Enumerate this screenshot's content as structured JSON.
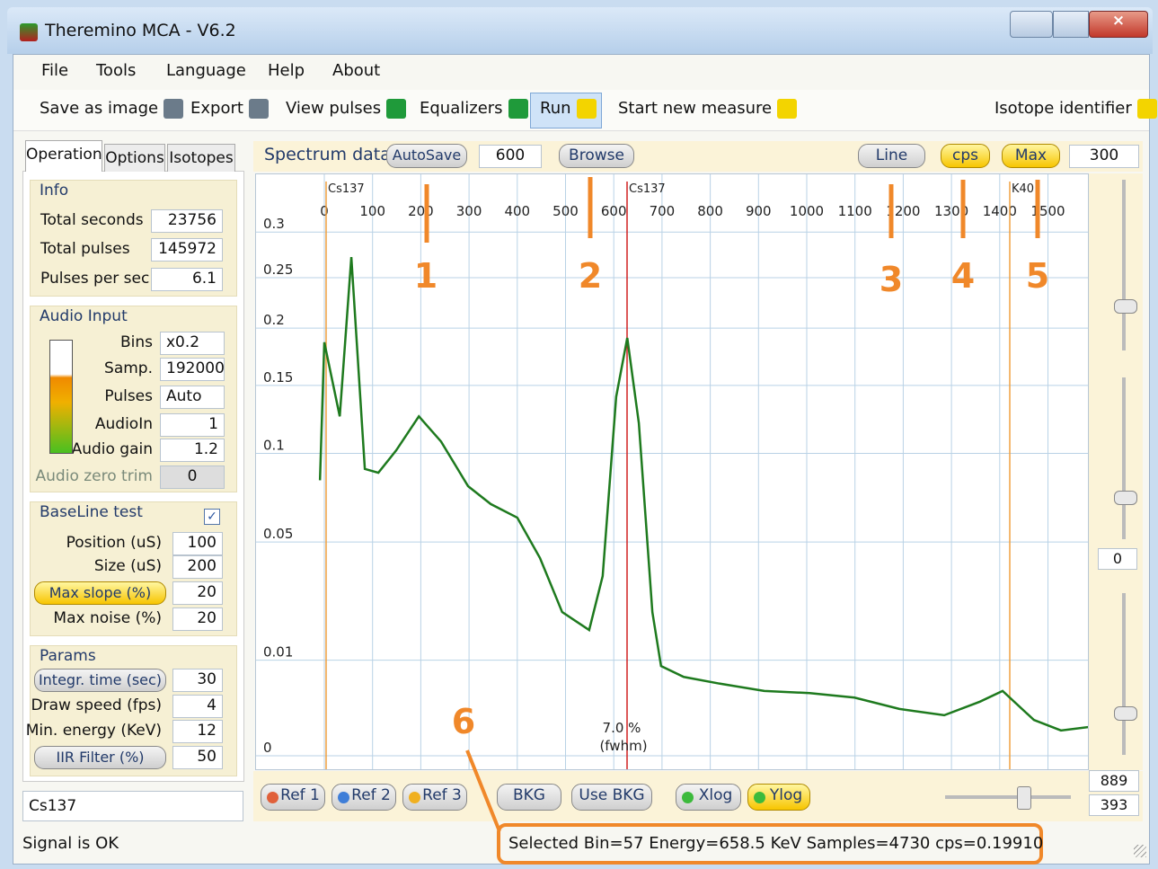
{
  "window": {
    "title": "Theremino MCA - V6.2"
  },
  "menu": [
    "File",
    "Tools",
    "Language",
    "Help",
    "About"
  ],
  "toolbar": [
    "Save as image",
    "Export",
    "View pulses",
    "Equalizers",
    "Run",
    "Start new measure",
    "Isotope identifier"
  ],
  "tabs": [
    "Operation",
    "Options",
    "Isotopes"
  ],
  "info": {
    "title": "Info",
    "rows": [
      {
        "label": "Total seconds",
        "value": "23756"
      },
      {
        "label": "Total pulses",
        "value": "145972"
      },
      {
        "label": "Pulses per sec.",
        "value": "6.1"
      }
    ]
  },
  "audio": {
    "title": "Audio Input",
    "rows": [
      {
        "label": "Bins",
        "value": "x0.2"
      },
      {
        "label": "Samp.",
        "value": "192000"
      },
      {
        "label": "Pulses",
        "value": "Auto"
      },
      {
        "label": "AudioIn",
        "value": "1"
      },
      {
        "label": "Audio gain",
        "value": "1.2"
      },
      {
        "label": "Audio zero trim",
        "value": "0"
      }
    ]
  },
  "baseline": {
    "title": "BaseLine test",
    "rows": [
      {
        "label": "Position (uS)",
        "value": "100"
      },
      {
        "label": "Size (uS)",
        "value": "200"
      },
      {
        "label": "Max slope (%)",
        "value": "20"
      },
      {
        "label": "Max noise (%)",
        "value": "20"
      }
    ]
  },
  "params": {
    "title": "Params",
    "rows": [
      {
        "label": "Integr. time (sec)",
        "value": "30"
      },
      {
        "label": "Draw speed (fps)",
        "value": "4"
      },
      {
        "label": "Min. energy (KeV)",
        "value": "12"
      },
      {
        "label": "IIR Filter (%)",
        "value": "50"
      }
    ]
  },
  "isotope_input": "Cs137",
  "status_left": "Signal is OK",
  "spectrum_bar": {
    "label": "Spectrum data",
    "autosave": "AutoSave",
    "autosave_value": "600",
    "browse": "Browse",
    "line": "Line",
    "cps": "cps",
    "max": "Max",
    "max_value": "300"
  },
  "bottom_buttons": [
    "Ref 1",
    "Ref 2",
    "Ref 3",
    "BKG",
    "Use BKG",
    "Xlog",
    "Ylog"
  ],
  "side_values": [
    "0",
    "889",
    "393"
  ],
  "status": "Selected Bin=57  Energy=658.5 KeV  Samples=4730  cps=0.19910",
  "annotations": [
    "1",
    "2",
    "3",
    "4",
    "5",
    "6"
  ],
  "plot": {
    "xticks": [
      0,
      100,
      200,
      300,
      400,
      500,
      600,
      700,
      800,
      900,
      1000,
      1100,
      1200,
      1300,
      1400,
      1500
    ],
    "yticks": [
      0.3,
      0.25,
      0.2,
      0.15,
      0.1,
      0.05,
      0.01,
      0
    ],
    "markers": [
      "Cs137",
      "Cs137",
      "K40"
    ],
    "fwhm": [
      "7.0 %",
      "(fwhm)"
    ],
    "spectrum": {
      "x": [
        -9,
        0,
        32,
        56,
        84,
        112,
        149,
        196,
        242,
        298,
        345,
        400,
        447,
        493,
        549,
        577,
        605,
        628,
        652,
        680,
        698,
        745,
        819,
        912,
        1006,
        1099,
        1192,
        1285,
        1359,
        1406,
        1471,
        1527,
        1583
      ],
      "values": [
        0.083,
        0.187,
        0.126,
        0.272,
        0.09,
        0.0876,
        0.102,
        0.126,
        0.108,
        0.0795,
        0.0693,
        0.062,
        0.0428,
        0.0226,
        0.0173,
        0.0353,
        0.141,
        0.191,
        0.121,
        0.0226,
        0.0088,
        0.0068,
        0.0057,
        0.0046,
        0.0043,
        0.0037,
        0.0024,
        0.0018,
        0.0032,
        0.0046,
        0.0014,
        0.0007,
        0.0009
      ],
      "color": "#1e7a1e"
    }
  }
}
